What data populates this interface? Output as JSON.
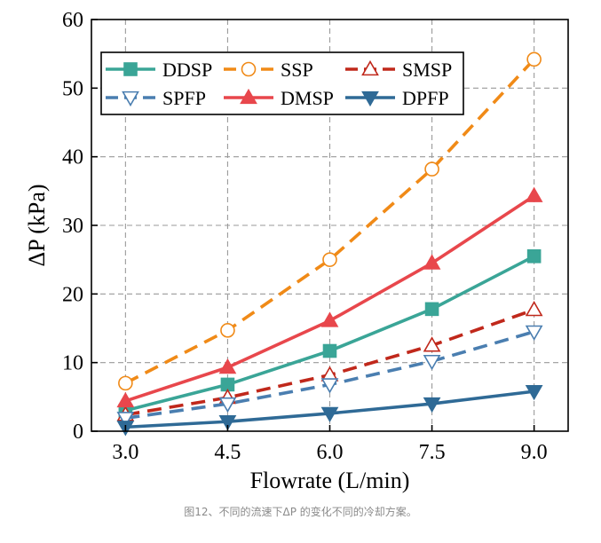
{
  "chart_data": {
    "type": "line",
    "xlabel": "Flowrate (L/min)",
    "ylabel": "ΔP (kPa)",
    "x": [
      3.0,
      4.5,
      6.0,
      7.5,
      9.0
    ],
    "x_tick_labels": [
      "3.0",
      "4.5",
      "6.0",
      "7.5",
      "9.0"
    ],
    "xlim": [
      2.5,
      9.5
    ],
    "ylim": [
      0,
      60
    ],
    "y_ticks": [
      0,
      10,
      20,
      30,
      40,
      50,
      60
    ],
    "y_tick_labels": [
      "0",
      "10",
      "20",
      "30",
      "40",
      "50",
      "60"
    ],
    "grid": true,
    "legend_position": "top-left",
    "series": [
      {
        "name": "DDSP",
        "values": [
          3.0,
          6.8,
          11.7,
          17.8,
          25.5
        ],
        "color": "#3aa597",
        "dash": "solid",
        "marker": "square-filled"
      },
      {
        "name": "SSP",
        "values": [
          7.0,
          14.7,
          25.0,
          38.2,
          54.2
        ],
        "color": "#f08a17",
        "dash": "dashed",
        "marker": "circle-open"
      },
      {
        "name": "SMSP",
        "values": [
          2.4,
          4.9,
          8.2,
          12.5,
          17.7
        ],
        "color": "#c0281b",
        "dash": "dashed",
        "marker": "triangle-up-open"
      },
      {
        "name": "SPFP",
        "values": [
          1.9,
          4.0,
          6.8,
          10.2,
          14.5
        ],
        "color": "#4a7eb0",
        "dash": "dashed",
        "marker": "triangle-down-open"
      },
      {
        "name": "DMSP",
        "values": [
          4.4,
          9.3,
          16.1,
          24.5,
          34.3
        ],
        "color": "#e8474c",
        "dash": "solid",
        "marker": "triangle-up-filled"
      },
      {
        "name": "DPFP",
        "values": [
          0.6,
          1.4,
          2.6,
          4.0,
          5.8
        ],
        "color": "#2f6a96",
        "dash": "solid",
        "marker": "triangle-down-filled"
      }
    ]
  },
  "caption": "图12、不同的流速下ΔP 的变化不同的冷却方案。"
}
